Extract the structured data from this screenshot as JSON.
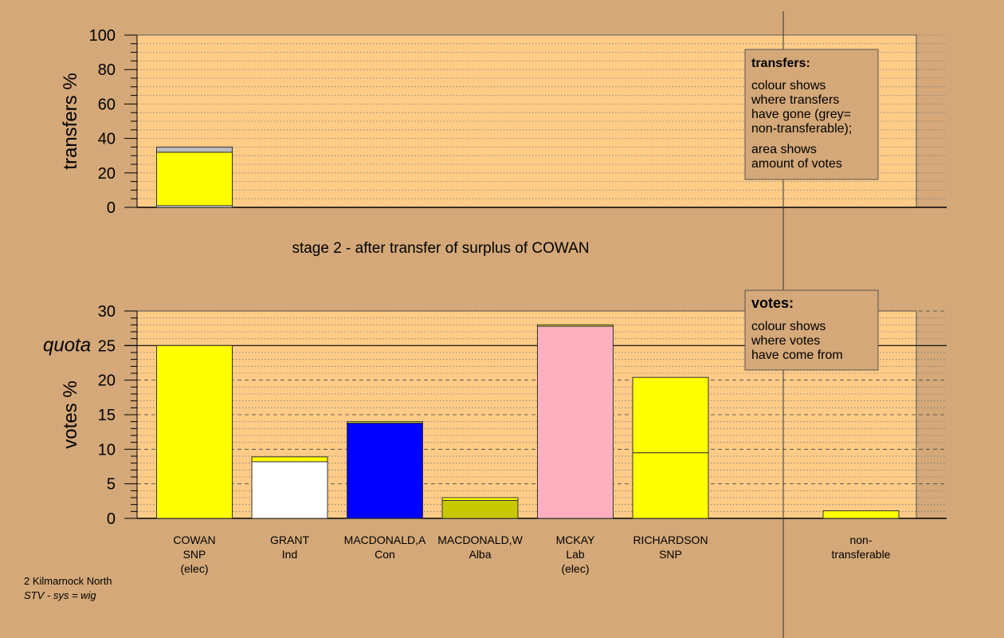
{
  "colors": {
    "background": "#d4a878",
    "plot": "#ffcc88",
    "SNP": "#ffff00",
    "Ind": "#ffffff",
    "Con": "#0000ff",
    "Alba": "#c8c800",
    "Lab": "#ffb0c0",
    "nontransferable": "#bbbbbb"
  },
  "chart_data": [
    {
      "type": "bar",
      "id": "transfers",
      "ylabel": "transfers %",
      "ylim": [
        0,
        100
      ],
      "yticks": [
        0,
        20,
        40,
        60,
        80,
        100
      ],
      "grid": true,
      "bars": [
        {
          "slot": 0,
          "segments": [
            {
              "party": "Ind",
              "value": 1.0
            },
            {
              "party": "SNP",
              "value": 31.0
            },
            {
              "party": "nontransferable",
              "value": 3.0
            }
          ]
        }
      ],
      "legend": {
        "title": "transfers:",
        "lines_1": [
          "colour shows",
          "where transfers",
          "have gone (grey=",
          "non-transferable);"
        ],
        "lines_2": [
          "area shows",
          "amount of votes"
        ]
      }
    },
    {
      "type": "bar",
      "id": "votes",
      "ylabel": "votes %",
      "ylim": [
        0,
        30
      ],
      "yticks": [
        0,
        5,
        10,
        15,
        20,
        25,
        30
      ],
      "grid": true,
      "quota": {
        "label": "quota",
        "value": 25
      },
      "bars": [
        {
          "slot": 0,
          "label1": "COWAN",
          "label2": "SNP",
          "label3": "(elec)",
          "segments": [
            {
              "party": "SNP",
              "value": 25.0
            }
          ]
        },
        {
          "slot": 1,
          "label1": "GRANT",
          "label2": "Ind",
          "label3": "",
          "segments": [
            {
              "party": "Ind",
              "value": 8.2
            },
            {
              "party": "SNP",
              "value": 0.7
            }
          ]
        },
        {
          "slot": 2,
          "label1": "MACDONALD,A",
          "label2": "Con",
          "label3": "",
          "segments": [
            {
              "party": "Con",
              "value": 13.8
            },
            {
              "party": "SNP",
              "value": 0.2
            }
          ]
        },
        {
          "slot": 3,
          "label1": "MACDONALD,W",
          "label2": "Alba",
          "label3": "",
          "segments": [
            {
              "party": "Alba",
              "value": 2.6
            },
            {
              "party": "SNP",
              "value": 0.4
            }
          ]
        },
        {
          "slot": 4,
          "label1": "MCKAY",
          "label2": "Lab",
          "label3": "(elec)",
          "segments": [
            {
              "party": "Lab",
              "value": 27.8
            },
            {
              "party": "SNP",
              "value": 0.2
            }
          ]
        },
        {
          "slot": 5,
          "label1": "RICHARDSON",
          "label2": "SNP",
          "label3": "",
          "segments": [
            {
              "party": "SNP",
              "value": 9.5
            },
            {
              "party": "SNP",
              "value": 10.9
            }
          ]
        },
        {
          "slot": 7,
          "label1": "non-",
          "label2": "transferable",
          "label3": "",
          "segments": [
            {
              "party": "SNP",
              "value": 1.1
            }
          ]
        }
      ],
      "legend": {
        "title": "votes:",
        "lines_1": [
          "colour shows",
          "where votes",
          "have come from"
        ]
      }
    }
  ],
  "stage_title": "stage 2 - after transfer of surplus of COWAN",
  "footer": {
    "line1": "2 Kilmarnock North",
    "line2": "STV - sys = wig"
  }
}
